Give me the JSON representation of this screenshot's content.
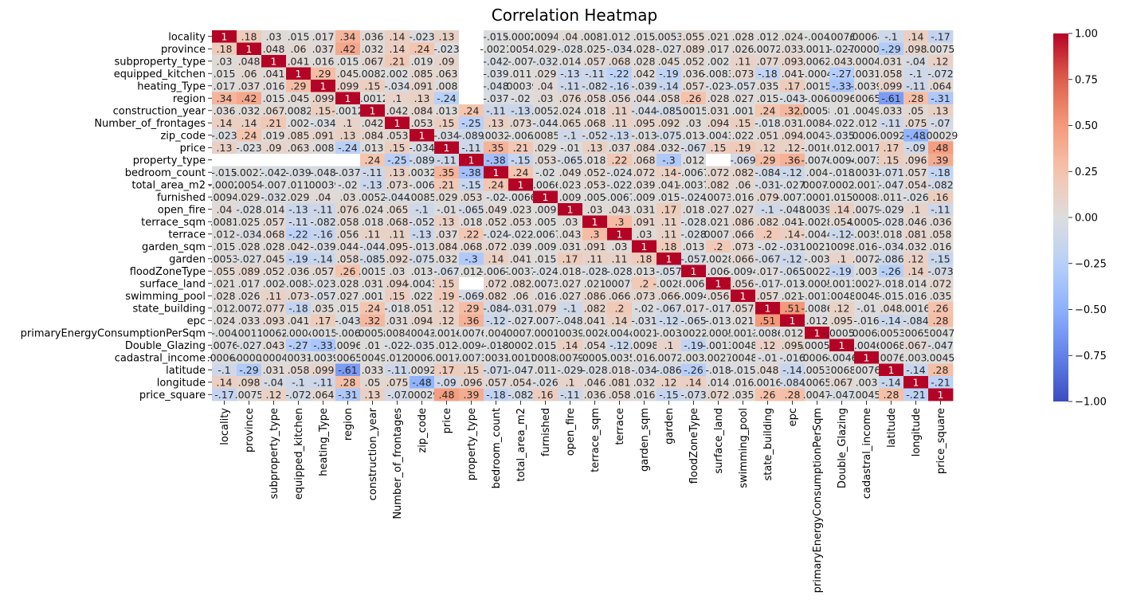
{
  "chart_data": {
    "type": "heatmap",
    "title": "Correlation Heatmap",
    "xlabel": "",
    "ylabel": "",
    "colormap": "coolwarm",
    "vmin": -1,
    "vmax": 1,
    "colorbar_ticks": [
      "1.00",
      "0.75",
      "0.50",
      "0.25",
      "0.00",
      "−0.25",
      "−0.50",
      "−0.75",
      "−1.00"
    ],
    "colorbar_tick_values": [
      1,
      0.75,
      0.5,
      0.25,
      0,
      -0.25,
      -0.5,
      -0.75,
      -1
    ],
    "colors": {
      "low": "#3b4cc0",
      "mid": "#dddddd",
      "high": "#b40426",
      "missing": "#ffffff"
    },
    "variables": [
      "locality",
      "province",
      "subproperty_type",
      "equipped_kitchen",
      "heating_Type",
      "region",
      "construction_year",
      "Number_of_frontages",
      "zip_code",
      "price",
      "property_type",
      "bedroom_count",
      "total_area_m2",
      "furnished",
      "open_fire",
      "terrace_sqm",
      "terrace",
      "garden_sqm",
      "garden",
      "floodZoneType",
      "surface_land",
      "swimming_pool",
      "state_building",
      "epc",
      "primaryEnergyConsumptionPerSqm",
      "Double_Glazing",
      "cadastral_income",
      "latitude",
      "longitude",
      "price_square"
    ],
    "matrix": [
      [
        1,
        0.18,
        0.03,
        0.015,
        0.017,
        0.34,
        0.036,
        0.14,
        -0.023,
        0.13,
        null,
        -0.015,
        -0.0002,
        0.0094,
        0.04,
        0.0081,
        0.012,
        0.015,
        0.0053,
        0.055,
        0.021,
        0.028,
        0.012,
        0.024,
        -0.004,
        0.0076,
        0.00064,
        -0.1,
        0.14,
        -0.17
      ],
      [
        0.18,
        1,
        0.048,
        0.06,
        0.037,
        0.42,
        0.032,
        0.14,
        0.24,
        -0.023,
        null,
        -0.0021,
        0.0054,
        0.029,
        -0.028,
        0.025,
        -0.034,
        0.028,
        -0.027,
        0.089,
        0.017,
        0.026,
        0.0072,
        0.033,
        0.0011,
        -0.027,
        -8e-05,
        -0.29,
        0.098,
        0.0075
      ],
      [
        0.03,
        0.048,
        1,
        0.041,
        0.016,
        0.015,
        0.067,
        0.21,
        0.019,
        0.09,
        null,
        -0.042,
        -0.007,
        -0.032,
        0.014,
        0.057,
        0.068,
        0.028,
        0.045,
        0.052,
        0.002,
        0.11,
        0.077,
        0.093,
        0.0062,
        0.043,
        0.0004,
        0.031,
        -0.04,
        0.12
      ],
      [
        0.015,
        0.06,
        0.041,
        1,
        0.29,
        0.045,
        0.0082,
        0.002,
        0.085,
        0.063,
        null,
        -0.039,
        0.011,
        0.029,
        -0.13,
        -0.11,
        -0.22,
        0.042,
        -0.19,
        0.036,
        -0.0083,
        0.073,
        -0.18,
        0.041,
        -0.0004,
        -0.27,
        0.0031,
        0.058,
        -0.1,
        -0.072
      ],
      [
        0.017,
        0.037,
        0.016,
        0.29,
        1,
        0.099,
        0.15,
        -0.034,
        0.091,
        0.008,
        null,
        -0.048,
        0.00039,
        0.04,
        -0.11,
        -0.082,
        -0.16,
        -0.039,
        -0.14,
        0.057,
        -0.023,
        -0.057,
        0.035,
        0.17,
        0.0015,
        -0.33,
        -0.0039,
        0.099,
        -0.11,
        0.064
      ],
      [
        0.34,
        0.42,
        0.015,
        0.045,
        0.099,
        1,
        -0.0012,
        0.1,
        0.13,
        -0.24,
        null,
        -0.037,
        -0.02,
        0.03,
        0.076,
        0.058,
        0.056,
        0.044,
        0.058,
        0.26,
        0.028,
        0.027,
        0.015,
        -0.043,
        -0.006,
        0.0096,
        0.0065,
        -0.61,
        0.28,
        -0.31
      ],
      [
        0.036,
        0.032,
        0.067,
        0.0082,
        0.15,
        -0.0012,
        1,
        0.042,
        0.084,
        0.013,
        0.24,
        -0.11,
        -0.13,
        0.0052,
        0.024,
        0.018,
        0.11,
        -0.044,
        -0.085,
        0.0015,
        0.031,
        0.001,
        0.24,
        0.32,
        0.00058,
        0.01,
        0.0049,
        0.033,
        0.05,
        0.13
      ],
      [
        0.14,
        0.14,
        0.21,
        0.002,
        -0.034,
        0.1,
        0.042,
        1,
        0.053,
        0.15,
        -0.25,
        0.13,
        0.073,
        -0.044,
        0.065,
        0.068,
        0.11,
        0.095,
        0.092,
        0.03,
        0.094,
        0.15,
        -0.018,
        0.031,
        0.0084,
        -0.022,
        0.012,
        -0.11,
        0.075,
        -0.07
      ],
      [
        -0.023,
        0.24,
        0.019,
        0.085,
        0.091,
        0.13,
        0.084,
        0.053,
        1,
        -0.034,
        -0.089,
        0.0032,
        -0.006,
        0.0085,
        -0.1,
        -0.052,
        -0.13,
        -0.013,
        -0.075,
        0.013,
        -0.0043,
        0.022,
        0.051,
        0.094,
        0.0043,
        -0.035,
        0.00063,
        0.0092,
        -0.48,
        0.00029
      ],
      [
        0.13,
        -0.023,
        0.09,
        0.063,
        0.008,
        -0.24,
        0.013,
        0.15,
        -0.034,
        1,
        -0.11,
        0.35,
        0.21,
        0.029,
        -0.01,
        0.13,
        0.037,
        0.084,
        0.032,
        -0.067,
        0.15,
        0.19,
        0.12,
        0.12,
        -0.0016,
        0.012,
        0.0017,
        0.17,
        -0.09,
        0.48
      ],
      [
        null,
        null,
        null,
        null,
        null,
        null,
        0.24,
        -0.25,
        -0.089,
        -0.11,
        1,
        -0.38,
        -0.15,
        0.053,
        -0.065,
        0.018,
        0.22,
        0.068,
        -0.3,
        0.012,
        null,
        -0.069,
        0.29,
        0.36,
        -0.0076,
        -0.0094,
        -0.0073,
        0.15,
        0.096,
        0.39
      ],
      [
        -0.015,
        -0.0021,
        -0.042,
        -0.039,
        -0.048,
        -0.037,
        -0.11,
        0.13,
        0.0032,
        0.35,
        -0.38,
        1,
        0.24,
        -0.02,
        0.049,
        0.052,
        -0.024,
        0.072,
        0.14,
        -0.0067,
        0.072,
        0.082,
        -0.084,
        -0.12,
        0.004,
        -0.018,
        0.0031,
        -0.071,
        0.057,
        -0.18
      ],
      [
        -0.0002,
        0.0054,
        -0.007,
        0.011,
        0.00039,
        -0.02,
        -0.13,
        0.073,
        -0.006,
        0.21,
        -0.15,
        0.24,
        1,
        -0.0066,
        0.023,
        0.053,
        -0.022,
        0.039,
        0.041,
        -0.0037,
        0.082,
        0.06,
        -0.031,
        -0.027,
        0.00077,
        -0.00024,
        -0.0017,
        -0.047,
        0.054,
        -0.082
      ],
      [
        0.0094,
        0.029,
        -0.032,
        0.029,
        0.04,
        0.03,
        0.0052,
        -0.044,
        0.0085,
        0.029,
        0.053,
        -0.02,
        -0.0066,
        1,
        0.009,
        0.005,
        -0.0067,
        0.009,
        0.015,
        -0.024,
        0.0073,
        0.016,
        0.079,
        -0.0077,
        0.0001,
        0.015,
        0.00088,
        0.011,
        -0.026,
        0.16
      ],
      [
        0.04,
        -0.028,
        0.014,
        -0.13,
        -0.11,
        0.076,
        0.024,
        0.065,
        -0.1,
        -0.01,
        -0.065,
        0.049,
        0.023,
        0.009,
        1,
        0.03,
        0.043,
        0.031,
        0.17,
        0.018,
        0.027,
        0.027,
        -0.1,
        -0.048,
        0.0039,
        0.14,
        0.0079,
        -0.029,
        0.1,
        -0.11
      ],
      [
        0.0081,
        0.025,
        0.057,
        -0.11,
        -0.082,
        0.058,
        0.018,
        0.068,
        -0.052,
        0.13,
        0.018,
        0.052,
        0.053,
        0.005,
        0.03,
        1,
        0.3,
        0.091,
        0.11,
        -0.028,
        0.021,
        0.086,
        0.082,
        0.041,
        -0.0028,
        0.054,
        -0.00054,
        -0.028,
        0.046,
        0.036
      ],
      [
        0.012,
        -0.034,
        0.068,
        -0.22,
        -0.16,
        0.056,
        0.11,
        0.11,
        -0.13,
        0.037,
        0.22,
        -0.024,
        -0.022,
        -0.0067,
        0.043,
        0.3,
        1,
        0.03,
        0.11,
        -0.028,
        0.00071,
        0.066,
        0.2,
        0.14,
        -0.0044,
        -0.12,
        -0.0035,
        0.018,
        0.081,
        0.058
      ],
      [
        0.015,
        0.028,
        0.028,
        0.042,
        -0.039,
        0.044,
        -0.044,
        0.095,
        -0.013,
        0.084,
        0.068,
        0.072,
        0.039,
        0.009,
        0.031,
        0.091,
        0.03,
        1,
        0.18,
        0.013,
        0.2,
        0.073,
        -0.02,
        -0.031,
        0.0021,
        0.0098,
        0.016,
        -0.034,
        0.032,
        0.016
      ],
      [
        0.0053,
        -0.027,
        0.045,
        -0.19,
        -0.14,
        0.058,
        -0.085,
        0.092,
        -0.075,
        0.032,
        -0.3,
        0.14,
        0.041,
        0.015,
        0.17,
        0.11,
        0.11,
        0.18,
        1,
        -0.057,
        -0.0028,
        0.066,
        -0.067,
        -0.12,
        -0.003,
        0.1,
        0.0072,
        -0.086,
        0.12,
        -0.15
      ],
      [
        0.055,
        0.089,
        0.052,
        0.036,
        0.057,
        0.26,
        0.0015,
        0.03,
        0.013,
        -0.067,
        0.012,
        -0.0067,
        -0.0037,
        -0.024,
        0.018,
        -0.028,
        -0.028,
        0.013,
        -0.057,
        1,
        0.006,
        -0.0094,
        0.017,
        -0.065,
        0.0022,
        -0.19,
        0.003,
        -0.26,
        0.14,
        -0.073
      ],
      [
        0.021,
        0.017,
        0.002,
        -0.0083,
        -0.023,
        0.028,
        0.031,
        0.094,
        -0.0043,
        0.15,
        null,
        0.072,
        0.082,
        0.0073,
        0.027,
        0.021,
        0.00071,
        0.2,
        -0.0028,
        0.006,
        1,
        0.056,
        -0.017,
        -0.013,
        -0.0005,
        -0.0013,
        0.0027,
        -0.018,
        0.014,
        0.072
      ],
      [
        0.028,
        0.026,
        0.11,
        0.073,
        -0.057,
        0.027,
        0.001,
        0.15,
        0.022,
        0.19,
        -0.069,
        0.082,
        0.06,
        0.016,
        0.027,
        0.086,
        0.066,
        0.073,
        0.066,
        -0.0094,
        0.056,
        1,
        0.057,
        0.021,
        -0.0013,
        0.0048,
        0.0048,
        -0.015,
        0.016,
        0.035
      ],
      [
        0.012,
        0.0072,
        0.077,
        -0.18,
        0.035,
        0.015,
        0.24,
        -0.018,
        0.051,
        0.12,
        0.29,
        -0.084,
        -0.031,
        0.079,
        -0.1,
        0.082,
        0.2,
        -0.02,
        -0.067,
        0.017,
        -0.017,
        0.057,
        1,
        0.51,
        -0.0086,
        0.12,
        -0.01,
        0.048,
        0.0016,
        0.26
      ],
      [
        0.024,
        0.033,
        0.093,
        0.041,
        0.17,
        -0.043,
        0.32,
        0.031,
        0.094,
        0.12,
        0.36,
        -0.12,
        -0.027,
        -0.0077,
        -0.048,
        0.041,
        0.14,
        -0.031,
        -0.12,
        -0.065,
        -0.013,
        0.021,
        0.51,
        1,
        0.012,
        0.095,
        -0.016,
        -0.14,
        -0.084,
        0.28
      ],
      [
        -0.004,
        0.0011,
        0.0062,
        -0.0004,
        0.0015,
        -0.006,
        0.00058,
        0.0084,
        0.0043,
        -0.0016,
        -0.0076,
        0.004,
        0.00077,
        0.0001,
        0.0039,
        -0.0028,
        -0.0044,
        0.0021,
        -0.003,
        0.0022,
        -0.0005,
        -0.0013,
        -0.0086,
        0.012,
        1,
        -0.00058,
        0.00068,
        0.0053,
        0.0065,
        0.0047
      ],
      [
        0.0076,
        -0.027,
        0.043,
        -0.27,
        -0.33,
        0.0096,
        0.01,
        -0.022,
        -0.035,
        0.012,
        -0.0094,
        -0.018,
        -0.00024,
        0.015,
        0.14,
        0.054,
        -0.12,
        0.0098,
        0.1,
        -0.19,
        -0.0013,
        0.0048,
        0.12,
        0.095,
        -0.00058,
        1,
        -0.0046,
        0.0068,
        0.067,
        -0.047
      ],
      [
        0.00064,
        -8e-05,
        0.0004,
        0.0031,
        -0.0039,
        0.0065,
        0.0049,
        0.012,
        0.00063,
        0.0017,
        -0.0073,
        0.0031,
        -0.0017,
        0.00088,
        0.0079,
        -0.00054,
        -0.0035,
        0.016,
        0.0072,
        0.003,
        0.0027,
        0.0048,
        -0.01,
        -0.016,
        0.00068,
        -0.0046,
        1,
        0.0076,
        0.003,
        0.0045
      ],
      [
        -0.1,
        -0.29,
        0.031,
        0.058,
        0.099,
        -0.61,
        0.033,
        -0.11,
        0.0092,
        0.17,
        0.15,
        -0.071,
        -0.047,
        0.011,
        -0.029,
        -0.028,
        0.018,
        -0.034,
        -0.086,
        -0.26,
        -0.018,
        -0.015,
        0.048,
        -0.14,
        0.0053,
        0.0068,
        0.0076,
        1,
        -0.14,
        0.28
      ],
      [
        0.14,
        0.098,
        -0.04,
        -0.1,
        -0.11,
        0.28,
        0.05,
        0.075,
        -0.48,
        -0.09,
        0.096,
        0.057,
        0.054,
        -0.026,
        0.1,
        0.046,
        0.081,
        0.032,
        0.12,
        0.14,
        0.014,
        0.016,
        0.0016,
        -0.084,
        0.0065,
        0.067,
        0.003,
        -0.14,
        1,
        -0.21
      ],
      [
        -0.17,
        0.0075,
        0.12,
        -0.072,
        0.064,
        -0.31,
        0.13,
        -0.07,
        0.00029,
        0.48,
        0.39,
        -0.18,
        -0.082,
        0.16,
        -0.11,
        0.036,
        0.058,
        0.016,
        -0.15,
        -0.073,
        0.072,
        0.035,
        0.26,
        0.28,
        0.0047,
        -0.047,
        0.0045,
        0.28,
        -0.21,
        1
      ]
    ]
  }
}
